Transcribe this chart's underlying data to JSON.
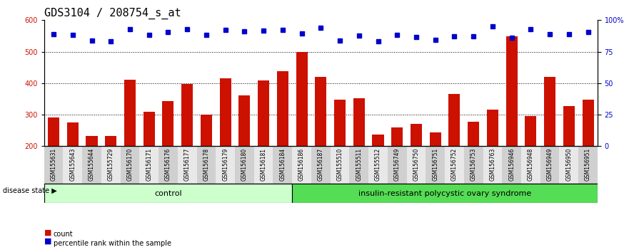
{
  "title": "GDS3104 / 208754_s_at",
  "samples": [
    "GSM155631",
    "GSM155643",
    "GSM155644",
    "GSM155729",
    "GSM156170",
    "GSM156171",
    "GSM156176",
    "GSM156177",
    "GSM156178",
    "GSM156179",
    "GSM156180",
    "GSM156181",
    "GSM156184",
    "GSM156186",
    "GSM156187",
    "GSM155510",
    "GSM155511",
    "GSM155512",
    "GSM156749",
    "GSM156750",
    "GSM156751",
    "GSM156752",
    "GSM156753",
    "GSM156763",
    "GSM156946",
    "GSM156948",
    "GSM156949",
    "GSM156950",
    "GSM156951"
  ],
  "bar_values": [
    290,
    275,
    233,
    233,
    410,
    310,
    342,
    398,
    300,
    415,
    362,
    408,
    438,
    500,
    420,
    348,
    352,
    238,
    260,
    270,
    244,
    365,
    278,
    315,
    548,
    295,
    420,
    328,
    348
  ],
  "percentile_values": [
    556,
    554,
    536,
    532,
    571,
    554,
    563,
    571,
    554,
    570,
    565,
    567,
    569,
    557,
    575,
    535,
    550,
    534,
    554,
    546,
    537,
    548,
    549,
    580,
    545,
    571,
    555,
    555,
    562
  ],
  "control_count": 13,
  "disease_count": 16,
  "control_label": "control",
  "disease_label": "insulin-resistant polycystic ovary syndrome",
  "disease_state_label": "disease state",
  "ylim_left": [
    200,
    600
  ],
  "ylim_right": [
    0,
    100
  ],
  "yticks_left": [
    200,
    300,
    400,
    500,
    600
  ],
  "yticks_right": [
    0,
    25,
    50,
    75,
    100
  ],
  "bar_color": "#cc1100",
  "dot_color": "#0000cc",
  "control_bg": "#ccffcc",
  "disease_bg": "#55dd55",
  "legend_count_label": "count",
  "legend_pct_label": "percentile rank within the sample",
  "title_fontsize": 11,
  "tick_fontsize": 7,
  "label_fontsize": 8
}
